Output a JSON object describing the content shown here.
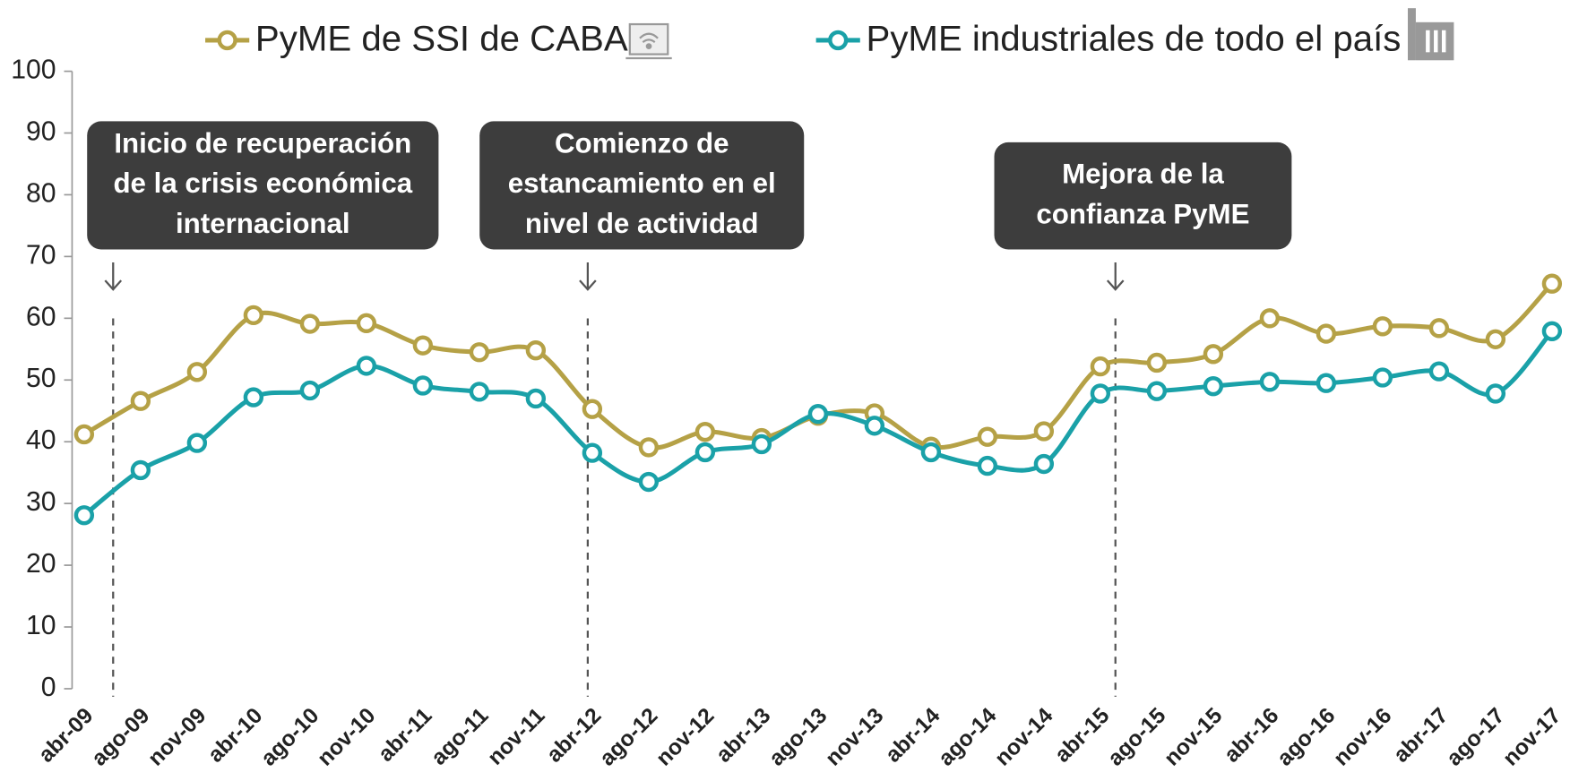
{
  "chart_data": {
    "type": "line",
    "categories": [
      "abr-09",
      "ago-09",
      "nov-09",
      "abr-10",
      "ago-10",
      "nov-10",
      "abr-11",
      "ago-11",
      "nov-11",
      "abr-12",
      "ago-12",
      "nov-12",
      "abr-13",
      "ago-13",
      "nov-13",
      "abr-14",
      "ago-14",
      "nov-14",
      "abr-15",
      "ago-15",
      "nov-15",
      "abr-16",
      "ago-16",
      "nov-16",
      "abr-17",
      "ago-17",
      "nov-17"
    ],
    "series": [
      {
        "name": "PyME de SSI de CABA",
        "color": "#b5a146",
        "values": [
          41.2,
          46.6,
          51.3,
          60.5,
          59.1,
          59.2,
          55.6,
          54.5,
          54.8,
          45.3,
          39.1,
          41.6,
          40.6,
          44.2,
          44.6,
          39.2,
          40.8,
          41.7,
          52.2,
          52.8,
          54.2,
          60.0,
          57.5,
          58.7,
          58.4,
          56.6,
          65.6
        ]
      },
      {
        "name": "PyME industriales de todo el país",
        "color": "#1aa1a8",
        "values": [
          28.1,
          35.4,
          39.8,
          47.2,
          48.3,
          52.3,
          49.1,
          48.1,
          47.0,
          38.2,
          33.5,
          38.3,
          39.6,
          44.5,
          42.6,
          38.3,
          36.1,
          36.4,
          47.8,
          48.2,
          49.0,
          49.7,
          49.5,
          50.4,
          51.4,
          47.8,
          57.9
        ]
      }
    ],
    "ylim": [
      0,
      100
    ],
    "yticks": [
      0,
      10,
      20,
      30,
      40,
      50,
      60,
      70,
      80,
      90,
      100
    ],
    "annotations": [
      {
        "lines": [
          "Inicio de recuperación",
          "de la crisis económica",
          "internacional"
        ]
      },
      {
        "lines": [
          "Comienzo de",
          "estancamiento en el",
          "nivel de actividad"
        ]
      },
      {
        "lines": [
          "Mejora de la",
          "confianza PyME"
        ]
      }
    ]
  }
}
